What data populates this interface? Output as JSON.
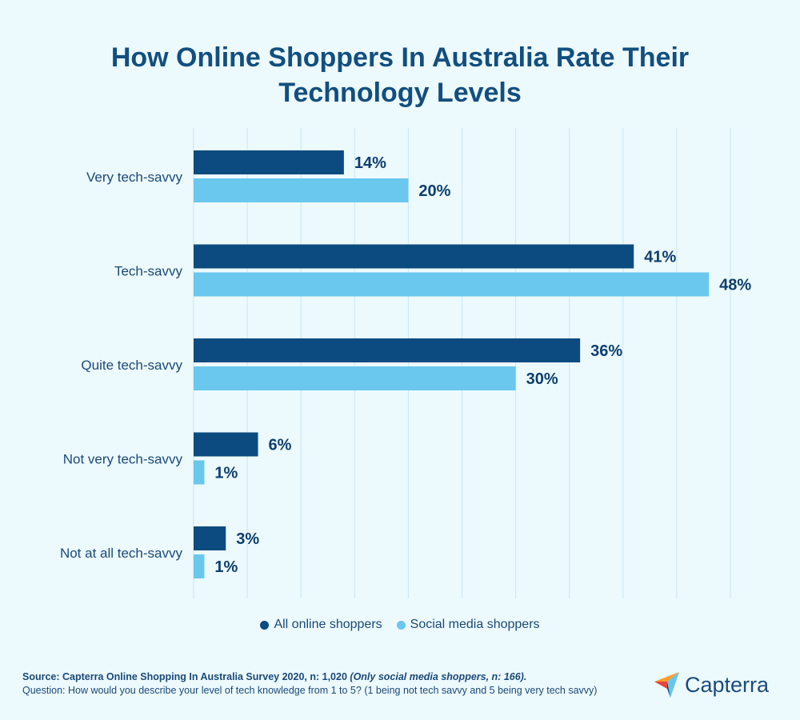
{
  "chart_data": {
    "type": "bar",
    "orientation": "horizontal",
    "title": "How Online Shoppers In Australia Rate Their Technology Levels",
    "title_lines": [
      "How Online Shoppers In Australia Rate Their",
      "Technology Levels"
    ],
    "categories": [
      "Very tech-savvy",
      "Tech-savvy",
      "Quite tech-savvy",
      "Not very tech-savvy",
      "Not at all tech-savvy"
    ],
    "series": [
      {
        "name": "All online shoppers",
        "values": [
          14,
          41,
          36,
          6,
          3
        ],
        "labels": [
          "14%",
          "41%",
          "36%",
          "6%",
          "3%"
        ],
        "color": "#0b4b80"
      },
      {
        "name": "Social media shoppers",
        "values": [
          20,
          48,
          30,
          1,
          1
        ],
        "labels": [
          "20%",
          "48%",
          "30%",
          "1%",
          "1%"
        ],
        "color": "#6ac7ee"
      }
    ],
    "xlim": [
      0,
      50
    ],
    "grid": true,
    "legend_position": "bottom"
  },
  "footer": {
    "source_bold": "Source: Capterra Online Shopping In Australia Survey 2020, n: 1,020",
    "source_note": "(Only social media shoppers, n: 166).",
    "question": "Question: How would you describe your level of tech knowledge from 1 to 5? (1 being not tech savvy and 5 being very tech savvy)"
  },
  "brand": {
    "name": "Capterra",
    "logo_icon": "capterra-arrow-icon",
    "colors": {
      "orange": "#ff9d28",
      "blue": "#68c5ed",
      "red": "#e4463e",
      "navy": "#044d80"
    }
  },
  "colors": {
    "background": "#ecf9fd",
    "gridline": "#c9e8f3",
    "primary": "#0b4b80",
    "secondary": "#6ac7ee"
  }
}
